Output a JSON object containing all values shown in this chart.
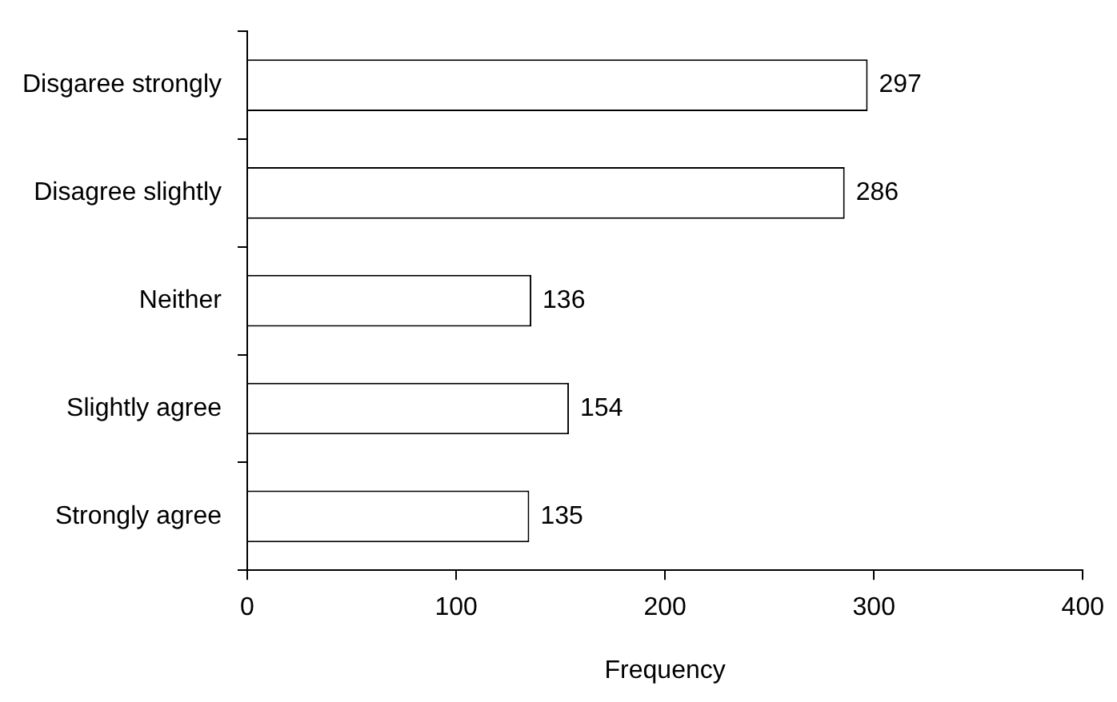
{
  "chart_data": {
    "type": "bar",
    "orientation": "horizontal",
    "xlabel": "Frequency",
    "categories": [
      "Disgaree strongly",
      "Disagree slightly",
      "Neither",
      "Slightly agree",
      "Strongly agree"
    ],
    "values": [
      297,
      286,
      136,
      154,
      135
    ],
    "color": "#ffffff",
    "xlim": [
      0,
      400
    ],
    "xticks": [
      0,
      100,
      200,
      300,
      400
    ],
    "grid": false,
    "legend": false,
    "data_labels": true
  }
}
